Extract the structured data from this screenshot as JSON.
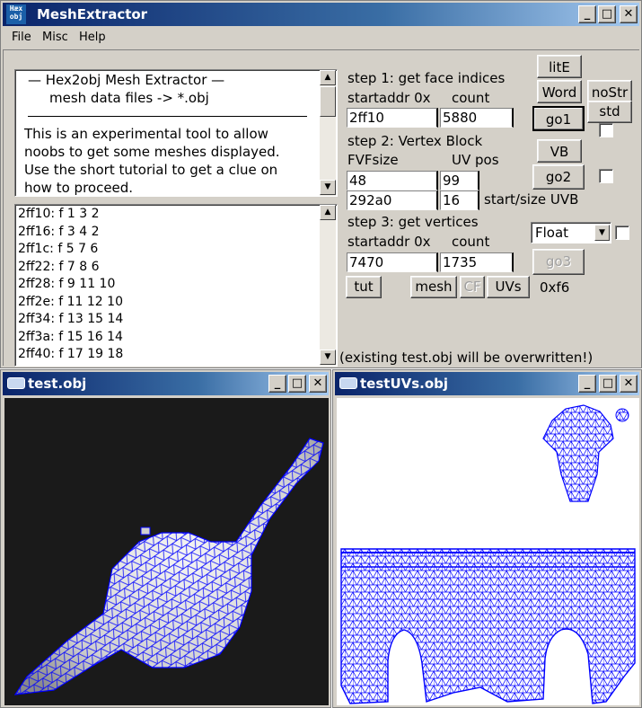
{
  "main_window": {
    "title": "MeshExtractor",
    "icon_text": [
      "Hæx",
      "obj"
    ],
    "controls": {
      "minimize": "_",
      "maximize": "□",
      "close": "✕"
    },
    "menu": [
      "File",
      "Misc",
      "Help"
    ]
  },
  "intro": {
    "heading": "—  Hex2obj Mesh Extractor  —",
    "subheading": "mesh data files -> *.obj",
    "body_lines": [
      "This is an experimental tool to allow",
      "noobs to get some meshes displayed.",
      "Use the short tutorial to get a clue on",
      "how to proceed."
    ]
  },
  "faces": [
    {
      "addr": "2ff10:",
      "text": "f  1 3 2"
    },
    {
      "addr": "2ff16:",
      "text": "f  3 4 2"
    },
    {
      "addr": "2ff1c:",
      "text": "f  5 7 6"
    },
    {
      "addr": "2ff22:",
      "text": "f  7 8 6"
    },
    {
      "addr": "2ff28:",
      "text": "f  9 11 10"
    },
    {
      "addr": "2ff2e:",
      "text": "f  11 12 10"
    },
    {
      "addr": "2ff34:",
      "text": "f  13 15 14"
    },
    {
      "addr": "2ff3a:",
      "text": "f  15 16 14"
    },
    {
      "addr": "2ff40:",
      "text": "f  17 19 18"
    }
  ],
  "step1": {
    "title": "step 1: get face indices",
    "col_a": "startaddr 0x",
    "col_b": "count",
    "startaddr": "2ff10",
    "count": "5880"
  },
  "step2": {
    "title": "step 2: Vertex Block",
    "col_a": "FVFsize",
    "col_b": "UV pos",
    "fvf_size": "48",
    "uv_pos": "99",
    "uvb_start": "292a0",
    "uvb_size": "16",
    "uvb_label": "start/size UVB"
  },
  "step3": {
    "title": "step 3: get vertices",
    "col_a": "startaddr 0x",
    "col_b": "count",
    "startaddr": "7470",
    "count": "1735"
  },
  "buttons": {
    "lite": "litE",
    "word": "Word",
    "nostr": "noStr",
    "go1": "go1",
    "std": "std",
    "vb": "VB",
    "go2": "go2",
    "go3": "go3",
    "tut": "tut",
    "mesh": "mesh",
    "cf": "CF",
    "uvs": "UVs"
  },
  "type_select": {
    "value": "Float",
    "arrow": "▼"
  },
  "hex_value": "0xf6",
  "status": "(existing test.obj will be overwritten!)",
  "mesh_window": {
    "title": "test.obj"
  },
  "uv_window": {
    "title": "testUVs.obj"
  },
  "colors": {
    "wire": "#0000ff",
    "viewport_bg": "#1a1a1a",
    "uv_bg": "#ffffff",
    "panel": "#d4d0c8",
    "title_active": "#0a246a"
  }
}
